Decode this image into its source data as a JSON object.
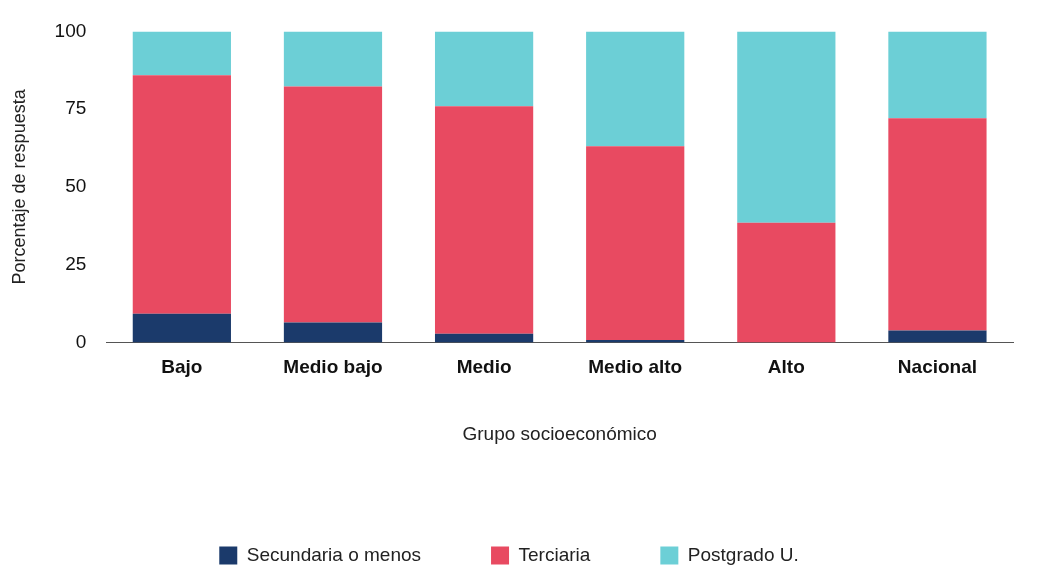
{
  "chart_data": {
    "type": "bar",
    "stacked": true,
    "xlabel": "Grupo socioeconómico",
    "ylabel": "Porcentaje de respuesta",
    "categories": [
      "Bajo",
      "Medio bajo",
      "Medio",
      "Medio alto",
      "Alto",
      "Nacional"
    ],
    "series": [
      {
        "name": "Secundaria o menos",
        "color": "#1b3a6b",
        "values": [
          9.2,
          6.4,
          2.8,
          0.8,
          0,
          3.8
        ]
      },
      {
        "name": "Terciaria",
        "color": "#e84a61",
        "values": [
          76.7,
          75.9,
          73.1,
          62.3,
          38.5,
          68.3
        ]
      },
      {
        "name": "Postgrado U.",
        "color": "#6ccfd6",
        "values": [
          14.1,
          17.7,
          24.1,
          36.9,
          61.5,
          27.9
        ]
      }
    ],
    "ylim": [
      0,
      100
    ],
    "yticks": [
      0,
      25,
      50,
      75,
      100
    ],
    "grid": false,
    "legend": "bottom"
  }
}
